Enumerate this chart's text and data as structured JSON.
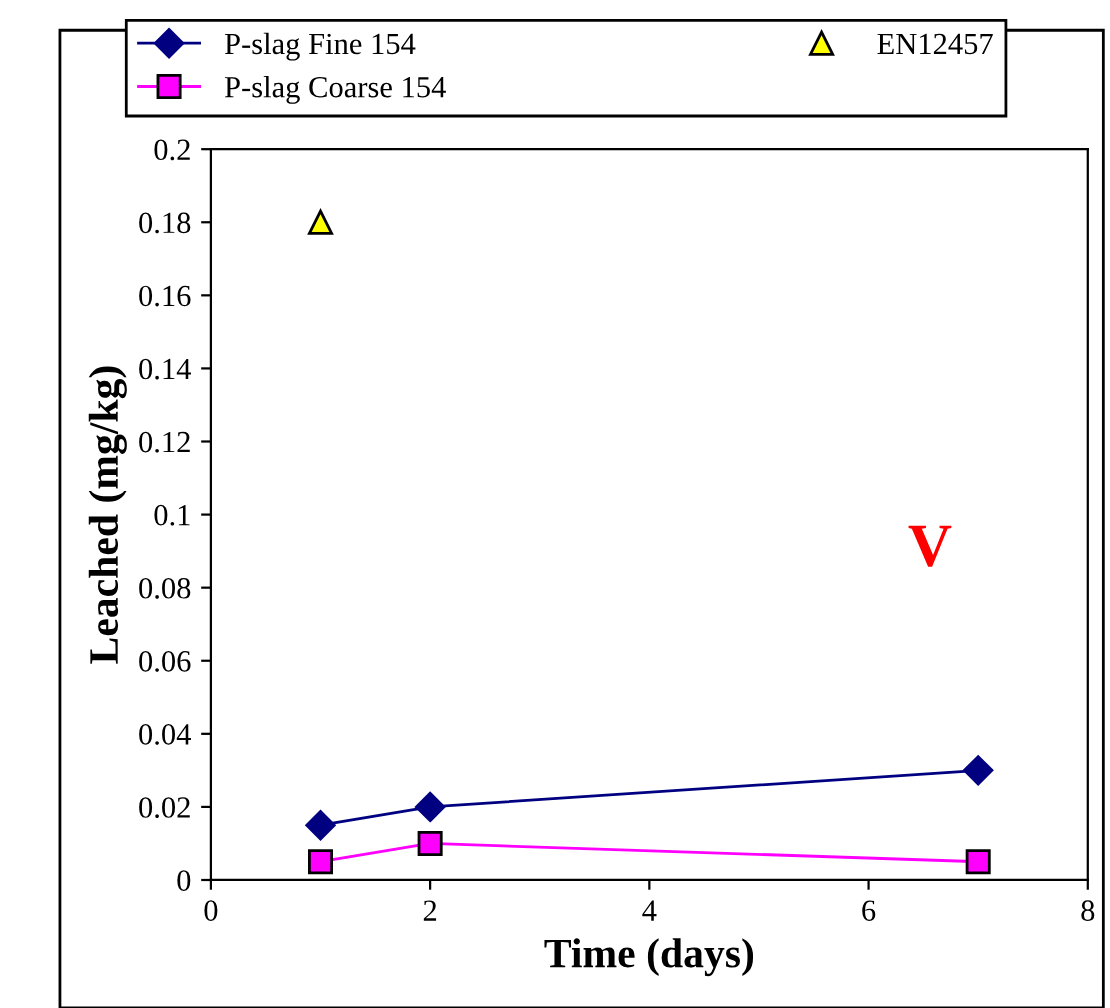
{
  "chart_data": {
    "type": "line",
    "xlabel": "Time (days)",
    "ylabel": "Leached (mg/kg)",
    "xlim": [
      0,
      8
    ],
    "xticks": [
      0,
      2,
      4,
      6,
      8
    ],
    "ylim": [
      0,
      0.2
    ],
    "yticks": [
      0,
      0.02,
      0.04,
      0.06,
      0.08,
      0.1,
      0.12,
      0.14,
      0.16,
      0.18,
      0.2
    ],
    "grid": false,
    "legend": "top",
    "annotations": [
      "V"
    ],
    "series": [
      {
        "name": "P-slag Fine 154",
        "color": "#000080",
        "marker": "diamond",
        "x": [
          1,
          2,
          7
        ],
        "values": [
          0.015,
          0.02,
          0.03
        ]
      },
      {
        "name": "P-slag Coarse 154",
        "color": "#ff00ff",
        "marker": "square",
        "x": [
          1,
          2,
          7
        ],
        "values": [
          0.005,
          0.01,
          0.005
        ]
      },
      {
        "name": "EN12457",
        "type": "scatter",
        "color": "#ffff00",
        "marker": "triangle",
        "x": [
          1
        ],
        "values": [
          0.18
        ]
      }
    ]
  }
}
